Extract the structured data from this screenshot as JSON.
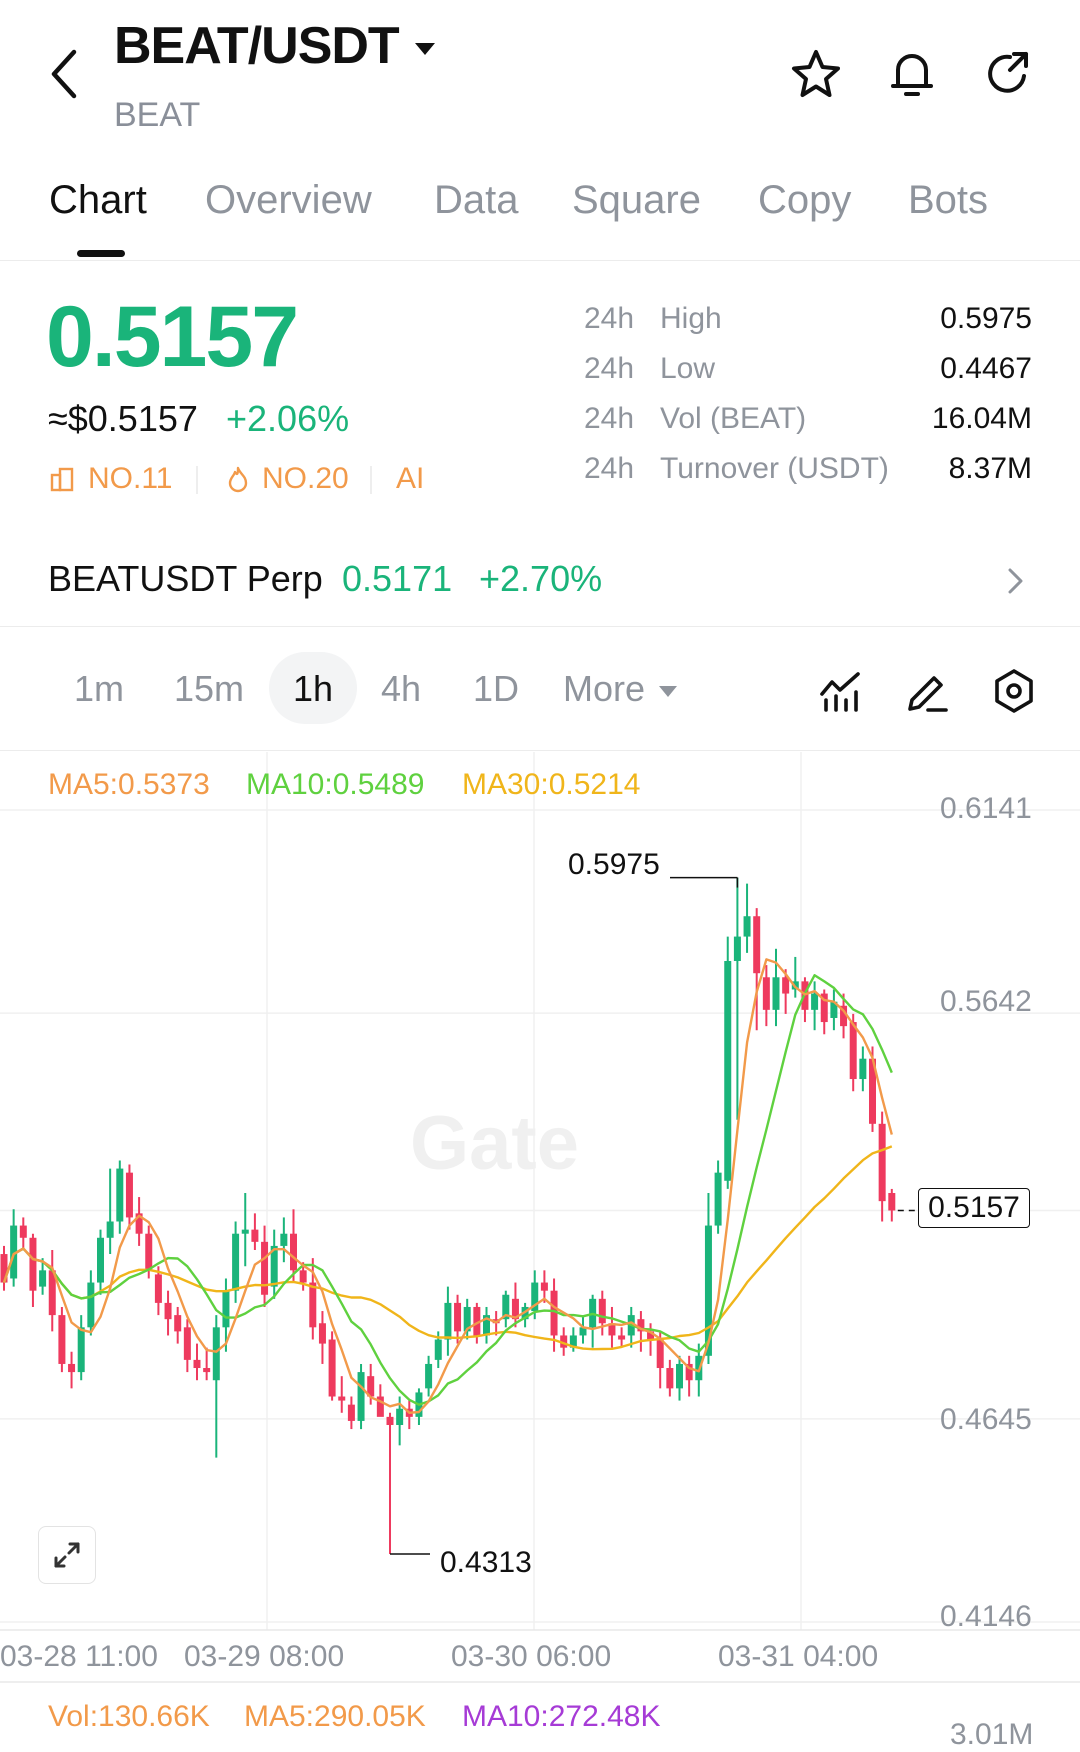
{
  "header": {
    "pair": "BEAT/USDT",
    "base": "BEAT"
  },
  "tabs": [
    "Chart",
    "Overview",
    "Data",
    "Square",
    "Copy",
    "Bots"
  ],
  "ticker": {
    "price": "0.5157",
    "usd_price": "≈$0.5157",
    "change": "+2.06%",
    "rank1": "NO.11",
    "rank2": "NO.20",
    "ai": "AI",
    "stats": [
      {
        "period": "24h",
        "name": "High",
        "value": "0.5975"
      },
      {
        "period": "24h",
        "name": "Low",
        "value": "0.4467"
      },
      {
        "period": "24h",
        "name": "Vol (BEAT)",
        "value": "16.04M"
      },
      {
        "period": "24h",
        "name": "Turnover (USDT)",
        "value": "8.37M"
      }
    ]
  },
  "perp": {
    "name": "BEATUSDT Perp",
    "price": "0.5171",
    "change": "+2.70%"
  },
  "intervals": [
    "1m",
    "15m",
    "1h",
    "4h",
    "1D",
    "More"
  ],
  "selected_interval": "1h",
  "indicators": {
    "ma5": "MA5:0.5373",
    "ma10": "MA10:0.5489",
    "ma30": "MA30:0.5214"
  },
  "chart": {
    "y_ticks": [
      "0.6141",
      "0.5642",
      "0.4645",
      "0.4146"
    ],
    "high_label": "0.5975",
    "low_label": "0.4313",
    "last_label": "0.5157",
    "x_ticks": [
      "03-28 11:00",
      "03-29 08:00",
      "03-30 06:00",
      "03-31 04:00"
    ],
    "watermark": "Gate"
  },
  "volume": {
    "vol": "Vol:130.66K",
    "ma5": "MA5:290.05K",
    "ma10": "MA10:272.48K",
    "axis": "3.01M"
  },
  "colors": {
    "up": "#1ab47a",
    "down": "#ee3a5e",
    "ma5": "#f29a4a",
    "ma10": "#5fd13f",
    "ma30": "#f0b51a"
  },
  "chart_data": {
    "type": "candlestick",
    "interval": "1h",
    "ylim": [
      0.4146,
      0.6141
    ],
    "y_ticks": [
      0.6141,
      0.5642,
      0.4645,
      0.4146
    ],
    "x_ticks": [
      "03-28 11:00",
      "03-29 08:00",
      "03-30 06:00",
      "03-31 04:00"
    ],
    "high_marker": 0.5975,
    "low_marker": 0.4313,
    "last_price": 0.5157,
    "candles": [
      [
        0.505,
        0.498,
        0.507,
        0.496
      ],
      [
        0.499,
        0.512,
        0.516,
        0.497
      ],
      [
        0.512,
        0.509,
        0.514,
        0.506
      ],
      [
        0.509,
        0.496,
        0.51,
        0.492
      ],
      [
        0.497,
        0.501,
        0.504,
        0.495
      ],
      [
        0.501,
        0.49,
        0.506,
        0.486
      ],
      [
        0.49,
        0.478,
        0.492,
        0.476
      ],
      [
        0.478,
        0.476,
        0.481,
        0.472
      ],
      [
        0.476,
        0.487,
        0.49,
        0.474
      ],
      [
        0.487,
        0.498,
        0.501,
        0.485
      ],
      [
        0.498,
        0.509,
        0.511,
        0.495
      ],
      [
        0.509,
        0.513,
        0.526,
        0.505
      ],
      [
        0.513,
        0.526,
        0.528,
        0.51
      ],
      [
        0.525,
        0.514,
        0.527,
        0.511
      ],
      [
        0.515,
        0.51,
        0.519,
        0.507
      ],
      [
        0.51,
        0.501,
        0.512,
        0.499
      ],
      [
        0.5,
        0.493,
        0.502,
        0.49
      ],
      [
        0.493,
        0.489,
        0.496,
        0.485
      ],
      [
        0.49,
        0.486,
        0.492,
        0.483
      ],
      [
        0.487,
        0.479,
        0.489,
        0.476
      ],
      [
        0.479,
        0.477,
        0.483,
        0.474
      ],
      [
        0.477,
        0.476,
        0.482,
        0.474
      ],
      [
        0.474,
        0.487,
        0.49,
        0.455
      ],
      [
        0.487,
        0.496,
        0.499,
        0.481
      ],
      [
        0.496,
        0.51,
        0.513,
        0.493
      ],
      [
        0.51,
        0.511,
        0.52,
        0.502
      ],
      [
        0.511,
        0.508,
        0.515,
        0.506
      ],
      [
        0.508,
        0.495,
        0.512,
        0.492
      ],
      [
        0.497,
        0.507,
        0.511,
        0.494
      ],
      [
        0.507,
        0.51,
        0.514,
        0.503
      ],
      [
        0.51,
        0.501,
        0.516,
        0.498
      ],
      [
        0.501,
        0.498,
        0.503,
        0.496
      ],
      [
        0.498,
        0.487,
        0.504,
        0.484
      ],
      [
        0.488,
        0.483,
        0.491,
        0.478
      ],
      [
        0.484,
        0.47,
        0.486,
        0.469
      ],
      [
        0.47,
        0.469,
        0.475,
        0.466
      ],
      [
        0.468,
        0.464,
        0.47,
        0.462
      ],
      [
        0.464,
        0.476,
        0.478,
        0.462
      ],
      [
        0.475,
        0.47,
        0.478,
        0.468
      ],
      [
        0.47,
        0.465,
        0.473,
        0.466
      ],
      [
        0.465,
        0.463,
        0.466,
        0.4313
      ],
      [
        0.463,
        0.467,
        0.47,
        0.458
      ],
      [
        0.467,
        0.465,
        0.469,
        0.462
      ],
      [
        0.465,
        0.471,
        0.472,
        0.463
      ],
      [
        0.472,
        0.478,
        0.48,
        0.47
      ],
      [
        0.479,
        0.484,
        0.486,
        0.477
      ],
      [
        0.484,
        0.493,
        0.497,
        0.48
      ],
      [
        0.493,
        0.486,
        0.495,
        0.483
      ],
      [
        0.486,
        0.492,
        0.494,
        0.484
      ],
      [
        0.492,
        0.485,
        0.493,
        0.483
      ],
      [
        0.485,
        0.49,
        0.492,
        0.483
      ],
      [
        0.489,
        0.488,
        0.491,
        0.485
      ],
      [
        0.489,
        0.495,
        0.496,
        0.487
      ],
      [
        0.494,
        0.489,
        0.498,
        0.487
      ],
      [
        0.489,
        0.492,
        0.493,
        0.487
      ],
      [
        0.491,
        0.498,
        0.501,
        0.489
      ],
      [
        0.498,
        0.496,
        0.501,
        0.493
      ],
      [
        0.496,
        0.485,
        0.499,
        0.481
      ],
      [
        0.485,
        0.482,
        0.487,
        0.48
      ],
      [
        0.482,
        0.485,
        0.487,
        0.481
      ],
      [
        0.485,
        0.487,
        0.49,
        0.483
      ],
      [
        0.487,
        0.494,
        0.495,
        0.482
      ],
      [
        0.494,
        0.488,
        0.496,
        0.485
      ],
      [
        0.488,
        0.485,
        0.492,
        0.482
      ],
      [
        0.485,
        0.484,
        0.487,
        0.482
      ],
      [
        0.485,
        0.49,
        0.492,
        0.482
      ],
      [
        0.489,
        0.486,
        0.491,
        0.481
      ],
      [
        0.486,
        0.484,
        0.488,
        0.48
      ],
      [
        0.484,
        0.477,
        0.486,
        0.472
      ],
      [
        0.477,
        0.472,
        0.479,
        0.47
      ],
      [
        0.472,
        0.478,
        0.48,
        0.469
      ],
      [
        0.478,
        0.474,
        0.48,
        0.47
      ],
      [
        0.474,
        0.48,
        0.483,
        0.47
      ],
      [
        0.48,
        0.512,
        0.52,
        0.478
      ],
      [
        0.512,
        0.525,
        0.528,
        0.51
      ],
      [
        0.523,
        0.577,
        0.583,
        0.521
      ],
      [
        0.577,
        0.583,
        0.5975,
        0.538
      ],
      [
        0.583,
        0.588,
        0.596,
        0.579
      ],
      [
        0.588,
        0.574,
        0.59,
        0.56
      ],
      [
        0.573,
        0.565,
        0.576,
        0.561
      ],
      [
        0.565,
        0.573,
        0.58,
        0.561
      ],
      [
        0.573,
        0.569,
        0.575,
        0.564
      ],
      [
        0.57,
        0.572,
        0.578,
        0.568
      ],
      [
        0.572,
        0.565,
        0.573,
        0.562
      ],
      [
        0.565,
        0.569,
        0.572,
        0.56
      ],
      [
        0.569,
        0.562,
        0.57,
        0.559
      ],
      [
        0.563,
        0.567,
        0.57,
        0.56
      ],
      [
        0.566,
        0.561,
        0.569,
        0.558
      ],
      [
        0.562,
        0.548,
        0.564,
        0.545
      ],
      [
        0.548,
        0.553,
        0.556,
        0.545
      ],
      [
        0.553,
        0.537,
        0.556,
        0.535
      ],
      [
        0.537,
        0.518,
        0.54,
        0.513
      ],
      [
        0.52,
        0.5157,
        0.521,
        0.513
      ]
    ],
    "series": [
      {
        "name": "MA5",
        "value": 0.5373
      },
      {
        "name": "MA10",
        "value": 0.5489
      },
      {
        "name": "MA30",
        "value": 0.5214
      }
    ]
  }
}
